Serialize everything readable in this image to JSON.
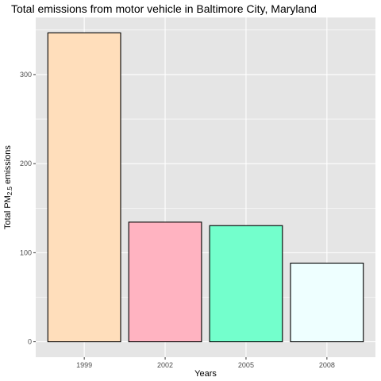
{
  "chart_data": {
    "type": "bar",
    "title": "Total emissions from motor vehicle in Baltimore City, Maryland",
    "xlabel": "Years",
    "ylabel_main": "Total PM",
    "ylabel_sub": "2.5",
    "ylabel_tail": " emissions",
    "categories": [
      "1999",
      "2002",
      "2005",
      "2008"
    ],
    "values": [
      346.8,
      134.3,
      130.4,
      88.3
    ],
    "colors": [
      "#FFDEBB",
      "#FFB3C1",
      "#73FFCC",
      "#EEFFFF"
    ],
    "yticks": [
      0,
      100,
      200,
      300
    ],
    "ylim": [
      -17.3,
      364.1
    ],
    "grid": true,
    "panel_background": "#E5E5E5",
    "grid_color": "#FFFFFF",
    "bar_outline": "#000000"
  }
}
